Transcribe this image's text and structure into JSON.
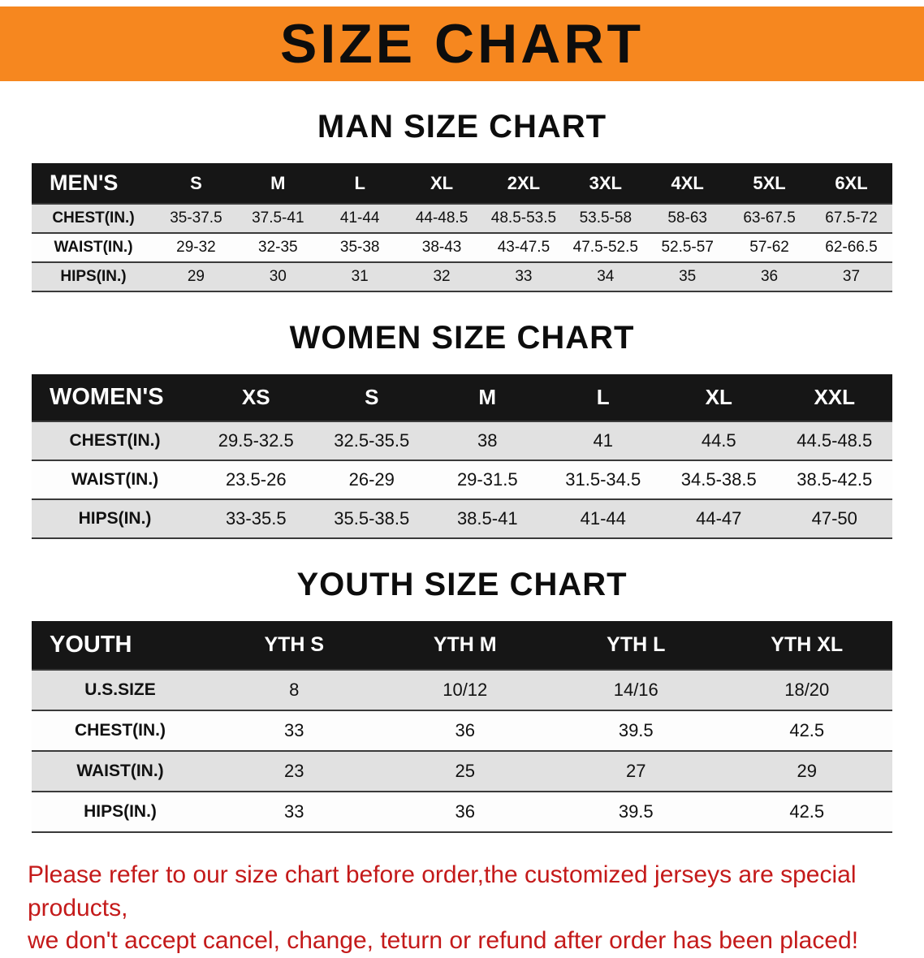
{
  "banner": {
    "title": "SIZE CHART"
  },
  "colors": {
    "banner_bg": "#f6871f",
    "header_bg": "#161616",
    "row_alt_bg": "#e1e1e1",
    "disclaimer_red": "#c41a1a"
  },
  "sections": [
    {
      "heading": "MAN SIZE CHART",
      "table": {
        "header": [
          "MEN'S",
          "S",
          "M",
          "L",
          "XL",
          "2XL",
          "3XL",
          "4XL",
          "5XL",
          "6XL"
        ],
        "rows": [
          [
            "CHEST(IN.)",
            "35-37.5",
            "37.5-41",
            "41-44",
            "44-48.5",
            "48.5-53.5",
            "53.5-58",
            "58-63",
            "63-67.5",
            "67.5-72"
          ],
          [
            "WAIST(IN.)",
            "29-32",
            "32-35",
            "35-38",
            "38-43",
            "43-47.5",
            "47.5-52.5",
            "52.5-57",
            "57-62",
            "62-66.5"
          ],
          [
            "HIPS(IN.)",
            "29",
            "30",
            "31",
            "32",
            "33",
            "34",
            "35",
            "36",
            "37"
          ]
        ]
      }
    },
    {
      "heading": "WOMEN SIZE CHART",
      "table": {
        "header": [
          "WOMEN'S",
          "XS",
          "S",
          "M",
          "L",
          "XL",
          "XXL"
        ],
        "rows": [
          [
            "CHEST(IN.)",
            "29.5-32.5",
            "32.5-35.5",
            "38",
            "41",
            "44.5",
            "44.5-48.5"
          ],
          [
            "WAIST(IN.)",
            "23.5-26",
            "26-29",
            "29-31.5",
            "31.5-34.5",
            "34.5-38.5",
            "38.5-42.5"
          ],
          [
            "HIPS(IN.)",
            "33-35.5",
            "35.5-38.5",
            "38.5-41",
            "41-44",
            "44-47",
            "47-50"
          ]
        ]
      }
    },
    {
      "heading": "YOUTH SIZE CHART",
      "table": {
        "header": [
          "YOUTH",
          "YTH S",
          "YTH M",
          "YTH L",
          "YTH XL"
        ],
        "rows": [
          [
            "U.S.SIZE",
            "8",
            "10/12",
            "14/16",
            "18/20"
          ],
          [
            "CHEST(IN.)",
            "33",
            "36",
            "39.5",
            "42.5"
          ],
          [
            "WAIST(IN.)",
            "23",
            "25",
            "27",
            "29"
          ],
          [
            "HIPS(IN.)",
            "33",
            "36",
            "39.5",
            "42.5"
          ]
        ]
      }
    }
  ],
  "footer": {
    "lines": [
      "Please refer to our size chart before order,the customized jerseys are special products,",
      "we don't accept cancel, change, teturn or refund after order has been placed!"
    ]
  }
}
